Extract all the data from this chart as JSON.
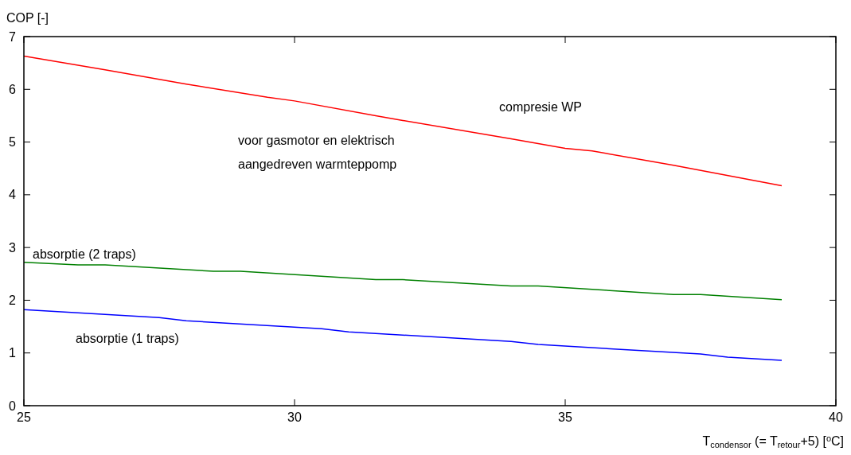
{
  "chart_data": {
    "type": "line",
    "xlabel": "T$_{condensor}$ (= T$_{retour}$+5)  [$^{o}$C]",
    "ylabel": "COP [-]",
    "xlim": [
      25,
      40
    ],
    "xticks": [
      25,
      30,
      35,
      40
    ],
    "ylim": [
      0,
      7
    ],
    "yticks": [
      0,
      1,
      2,
      3,
      4,
      5,
      6,
      7
    ],
    "grid": false,
    "marker": "none",
    "line_style": "solid",
    "series": [
      {
        "color": "#ff0000",
        "x": [
          25,
          26.5,
          28,
          29.5,
          30,
          31.5,
          32,
          34,
          35,
          35.5,
          37,
          39
        ],
        "values": [
          6.63,
          6.37,
          6.1,
          5.85,
          5.78,
          5.5,
          5.41,
          5.06,
          4.88,
          4.83,
          4.56,
          4.17
        ]
      },
      {
        "color": "#008000",
        "x": [
          25,
          26,
          26.5,
          28.5,
          29,
          31.5,
          32,
          34,
          34.5,
          37,
          37.5,
          39
        ],
        "values": [
          2.72,
          2.67,
          2.67,
          2.55,
          2.55,
          2.39,
          2.39,
          2.27,
          2.27,
          2.11,
          2.11,
          2.01
        ]
      },
      {
        "color": "#0000ff",
        "x": [
          25,
          27.5,
          28,
          30.5,
          31,
          34,
          34.5,
          37.5,
          38,
          39
        ],
        "values": [
          1.82,
          1.67,
          1.61,
          1.46,
          1.4,
          1.22,
          1.16,
          0.98,
          0.92,
          0.86
        ]
      }
    ],
    "annotations": [
      "compresie WP",
      "voor gasmotor en elektrisch\naangedreven warmteppomp",
      "absorptie (2 traps)",
      "absorptie (1 traps)"
    ]
  }
}
